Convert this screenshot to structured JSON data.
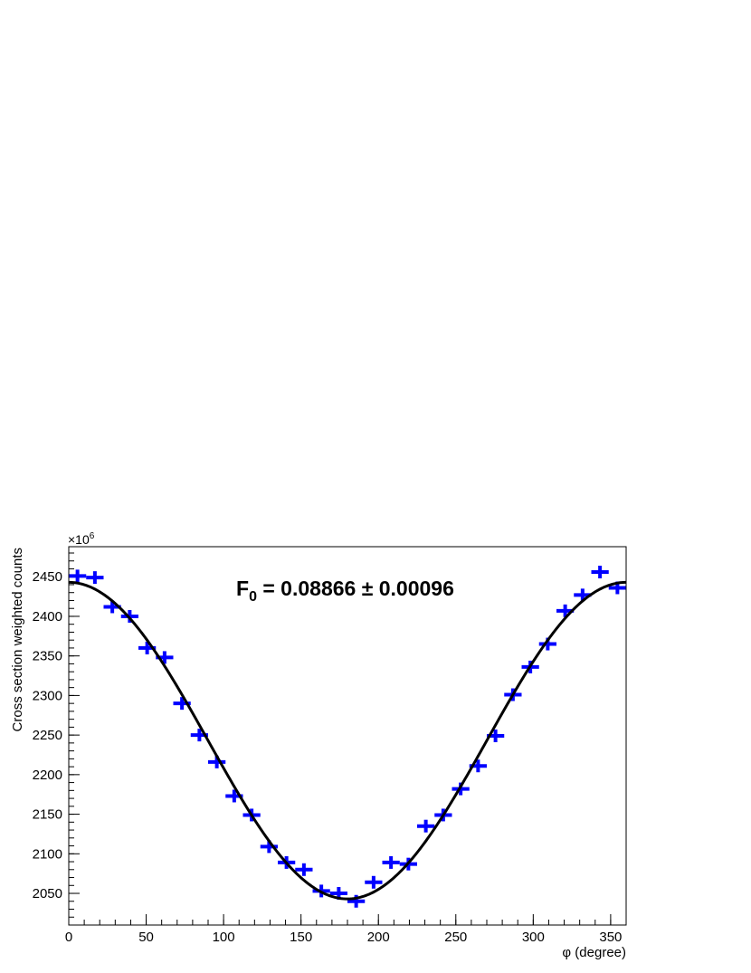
{
  "chart_data": {
    "type": "errorbar",
    "annotation": {
      "main": "F",
      "subscript": "0",
      "rest": " = 0.08866 ± 0.00096"
    },
    "xlabel": "φ (degree)",
    "ylabel": "Cross section weighted counts",
    "y_scale_label": {
      "base": "×10",
      "exponent": "6"
    },
    "xlim": [
      0,
      360
    ],
    "xticks": [
      0,
      50,
      100,
      150,
      200,
      250,
      300,
      350
    ],
    "ylim": [
      2010,
      2488
    ],
    "yticks": [
      2050,
      2100,
      2150,
      2200,
      2250,
      2300,
      2350,
      2400,
      2450
    ],
    "minor_ticks": true,
    "series": [
      {
        "color": "#0000ff",
        "x": [
          5.625,
          16.875,
          28.125,
          39.375,
          50.625,
          61.875,
          73.125,
          84.375,
          95.625,
          106.875,
          118.125,
          129.375,
          140.625,
          151.875,
          163.125,
          174.375,
          185.625,
          196.875,
          208.125,
          219.375,
          230.625,
          241.875,
          253.125,
          264.375,
          275.625,
          286.875,
          298.125,
          309.375,
          320.625,
          331.875,
          343.125,
          354.375
        ],
        "x_errors": [
          5.625,
          5.625,
          5.625,
          5.625,
          5.625,
          5.625,
          5.625,
          5.625,
          5.625,
          5.625,
          5.625,
          5.625,
          5.625,
          5.625,
          5.625,
          5.625,
          5.625,
          5.625,
          5.625,
          5.625,
          5.625,
          5.625,
          5.625,
          5.625,
          5.625,
          5.625,
          5.625,
          5.625,
          5.625,
          5.625,
          5.625,
          5.625
        ],
        "values": [
          2451,
          2449,
          2412,
          2400,
          2360,
          2348,
          2290,
          2250,
          2216,
          2173,
          2149,
          2109,
          2089,
          2080,
          2053,
          2050,
          2040,
          2064,
          2089,
          2087,
          2135,
          2149,
          2182,
          2211,
          2249,
          2301,
          2336,
          2365,
          2407,
          2427,
          2456,
          2436
        ],
        "errors": [
          8,
          8,
          8,
          8,
          8,
          8,
          8,
          8,
          8,
          8,
          8,
          8,
          8,
          8,
          8,
          8,
          8,
          8,
          8,
          8,
          8,
          8,
          8,
          8,
          8,
          8,
          8,
          8,
          8,
          8,
          8,
          8
        ]
      }
    ],
    "fit": {
      "color": "#000000",
      "constant": 2243,
      "amplitude": 200
    }
  }
}
